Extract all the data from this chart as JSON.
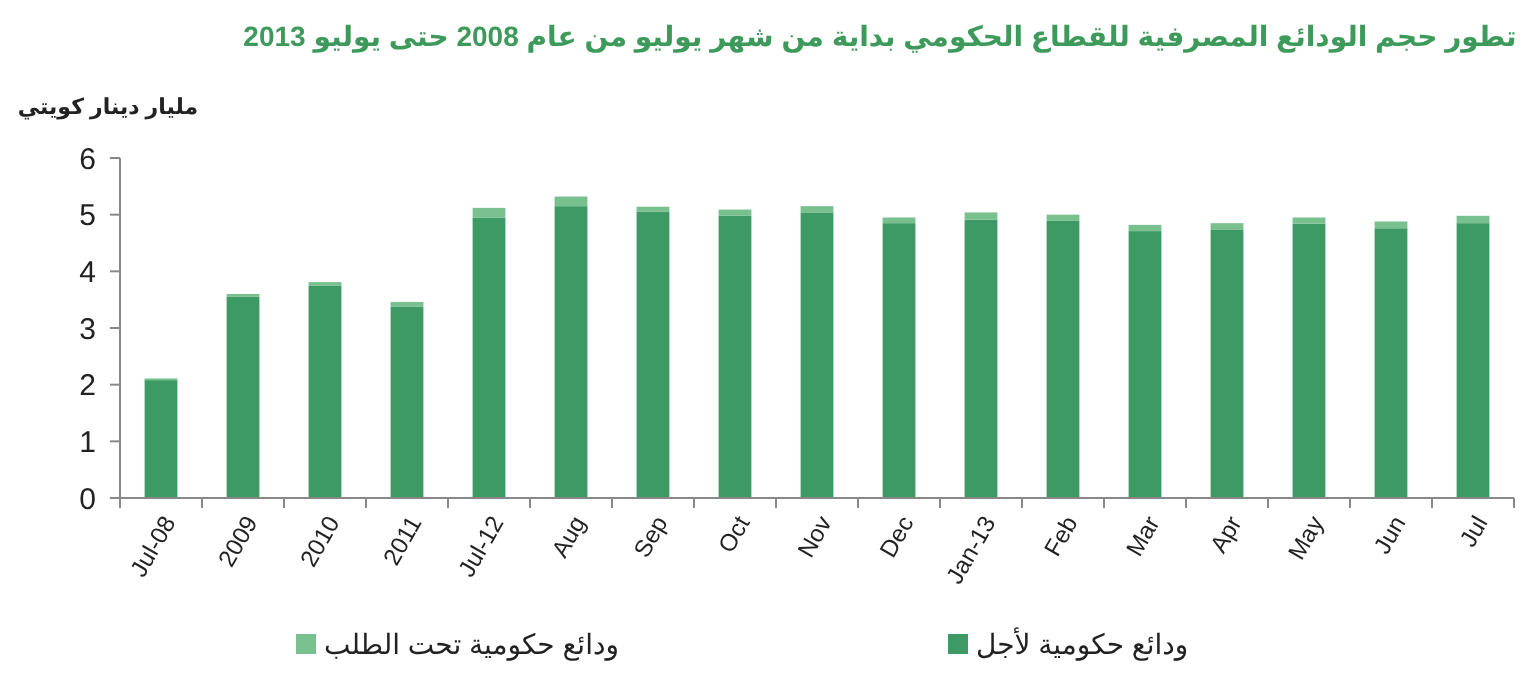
{
  "chart_data": {
    "type": "bar",
    "title": "تطور حجم الودائع المصرفية للقطاع الحكومي بداية من شهر يوليو من عام 2008 حتى يوليو 2013",
    "ylabel": "مليار دينار كويتي",
    "categories": [
      "Jul-08",
      "2009",
      "2010",
      "2011",
      "Jul-12",
      "Aug",
      "Sep",
      "Oct",
      "Nov",
      "Dec",
      "Jan-13",
      "Feb",
      "Mar",
      "Apr",
      "May",
      "Jun",
      "Jul"
    ],
    "stacked": true,
    "series": [
      {
        "name": "ودائع حكومية لأجل",
        "color": "#3d9a65",
        "values": [
          2.08,
          3.55,
          3.75,
          3.38,
          4.95,
          5.15,
          5.05,
          4.98,
          5.04,
          4.85,
          4.91,
          4.89,
          4.71,
          4.74,
          4.84,
          4.76,
          4.85
        ]
      },
      {
        "name": "ودائع حكومية تحت الطلب",
        "color": "#79c08f",
        "values": [
          0.03,
          0.05,
          0.06,
          0.08,
          0.17,
          0.17,
          0.09,
          0.11,
          0.11,
          0.1,
          0.13,
          0.11,
          0.11,
          0.11,
          0.11,
          0.12,
          0.13
        ]
      }
    ],
    "ylim": [
      0,
      6
    ],
    "yticks": [
      0,
      1,
      2,
      3,
      4,
      5,
      6
    ],
    "grid": false,
    "legend": "bottom"
  }
}
